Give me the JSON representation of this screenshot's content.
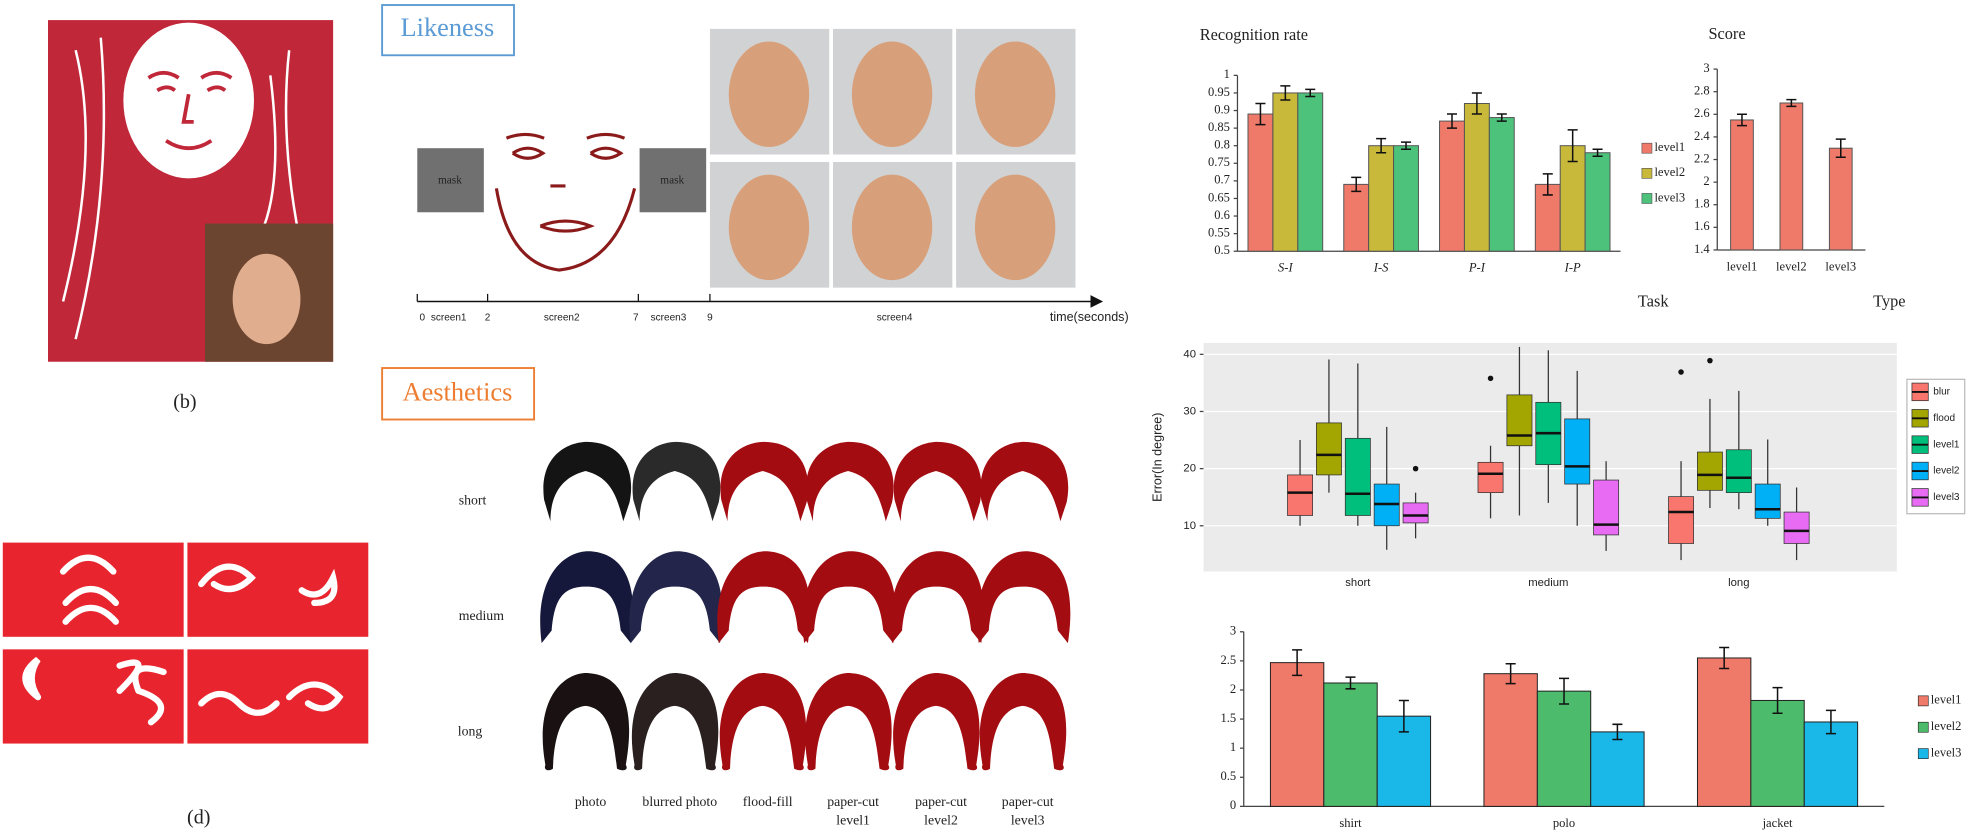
{
  "panels": {
    "b_label": "(b)",
    "d_label": "(d)",
    "likeness": {
      "title": "Likeness",
      "mask_labels": [
        "mask",
        "mask"
      ],
      "timeline": [
        "0",
        "screen1",
        "2",
        "screen2",
        "7",
        "screen3",
        "9",
        "screen4",
        "time(seconds)"
      ]
    },
    "aesthetics": {
      "title": "Aesthetics",
      "rows": [
        "short",
        "medium",
        "long"
      ],
      "columns": [
        [
          "photo"
        ],
        [
          "blurred photo"
        ],
        [
          "flood-fill"
        ],
        [
          "paper-cut",
          "level1"
        ],
        [
          "paper-cut",
          "level2"
        ],
        [
          "paper-cut",
          "level3"
        ]
      ]
    }
  },
  "chart_data": [
    {
      "type": "bar",
      "title": "Recognition rate",
      "xlabel": "Task",
      "categories": [
        "S-I",
        "I-S",
        "P-I",
        "I-P"
      ],
      "series": [
        {
          "name": "level1",
          "color": "#f07a6a",
          "values": [
            0.89,
            0.69,
            0.87,
            0.69
          ],
          "errors": [
            0.03,
            0.02,
            0.02,
            0.03
          ]
        },
        {
          "name": "level2",
          "color": "#c8b93a",
          "values": [
            0.95,
            0.8,
            0.92,
            0.8
          ],
          "errors": [
            0.02,
            0.02,
            0.03,
            0.045
          ]
        },
        {
          "name": "level3",
          "color": "#4cc27a",
          "values": [
            0.95,
            0.8,
            0.88,
            0.78
          ],
          "errors": [
            0.01,
            0.01,
            0.01,
            0.01
          ]
        }
      ],
      "ylim": [
        0.5,
        1
      ],
      "yticks": [
        0.5,
        0.55,
        0.6,
        0.65,
        0.7,
        0.75,
        0.8,
        0.85,
        0.9,
        0.95,
        1
      ],
      "grid": false
    },
    {
      "type": "bar",
      "title": "Score",
      "xlabel": "Type",
      "categories": [
        "level1",
        "level2",
        "level3"
      ],
      "values": [
        2.55,
        2.7,
        2.3
      ],
      "errors": [
        0.05,
        0.03,
        0.08
      ],
      "color": "#f07a6a",
      "ylim": [
        1.4,
        3
      ],
      "yticks": [
        1.4,
        1.6,
        1.8,
        2,
        2.2,
        2.4,
        2.6,
        2.8,
        3
      ],
      "grid": false
    },
    {
      "type": "box",
      "ylabel": "Error(In degree)",
      "categories": [
        "short",
        "medium",
        "long"
      ],
      "series": [
        {
          "name": "blur",
          "color": "#f8766d",
          "min": [
            10,
            11.3,
            4
          ],
          "q1": [
            11.8,
            15.8,
            6.9
          ],
          "median": [
            15.8,
            19.1,
            12.4
          ],
          "q3": [
            18.9,
            21.1,
            15.1
          ],
          "max": [
            25,
            24,
            21.3
          ],
          "outliers": [
            [],
            [
              35.8
            ],
            [
              36.9
            ]
          ]
        },
        {
          "name": "flood",
          "color": "#a3a500",
          "min": [
            15.8,
            11.8,
            13.1
          ],
          "q1": [
            18.9,
            24,
            16.2
          ],
          "median": [
            22.4,
            25.8,
            18.9
          ],
          "q3": [
            28,
            32.9,
            22.9
          ],
          "max": [
            39.1,
            41.3,
            32.2
          ],
          "outliers": [
            [],
            [],
            [
              38.9
            ]
          ]
        },
        {
          "name": "level1",
          "color": "#00bf7d",
          "min": [
            10,
            14,
            12.9
          ],
          "q1": [
            11.8,
            20.7,
            15.8
          ],
          "median": [
            15.6,
            26.2,
            18.4
          ],
          "q3": [
            25.3,
            31.6,
            23.3
          ],
          "max": [
            38.4,
            40.7,
            33.6
          ],
          "outliers": [
            [],
            [],
            []
          ]
        },
        {
          "name": "level2",
          "color": "#00b0f6",
          "min": [
            5.8,
            10,
            10
          ],
          "q1": [
            10,
            17.3,
            11.3
          ],
          "median": [
            13.8,
            20.4,
            12.9
          ],
          "q3": [
            17.3,
            28.7,
            17.3
          ],
          "max": [
            27.3,
            37.1,
            25.1
          ],
          "outliers": [
            [],
            [],
            []
          ]
        },
        {
          "name": "level3",
          "color": "#e76bf3",
          "min": [
            7.8,
            5.6,
            4
          ],
          "q1": [
            10.5,
            8.4,
            6.9
          ],
          "median": [
            11.8,
            10.2,
            9.1
          ],
          "q3": [
            14,
            18,
            12.4
          ],
          "max": [
            15.8,
            21.3,
            16.7
          ],
          "outliers": [
            [
              20
            ],
            [],
            []
          ]
        }
      ],
      "ylim": [
        2,
        42
      ],
      "yticks": [
        10,
        20,
        30,
        40
      ],
      "grid": true
    },
    {
      "type": "bar",
      "categories": [
        "shirt",
        "polo",
        "jacket"
      ],
      "series": [
        {
          "name": "level1",
          "color": "#f07a6a",
          "values": [
            2.47,
            2.28,
            2.55
          ],
          "errors": [
            0.22,
            0.17,
            0.18
          ]
        },
        {
          "name": "level2",
          "color": "#4cbb6c",
          "values": [
            2.12,
            1.98,
            1.82
          ],
          "errors": [
            0.1,
            0.22,
            0.22
          ]
        },
        {
          "name": "level3",
          "color": "#1ab8e8",
          "values": [
            1.55,
            1.28,
            1.45
          ],
          "errors": [
            0.27,
            0.13,
            0.2
          ]
        }
      ],
      "ylim": [
        0,
        3
      ],
      "yticks": [
        0,
        0.5,
        1,
        1.5,
        2,
        2.5,
        3
      ],
      "grid": false
    }
  ]
}
